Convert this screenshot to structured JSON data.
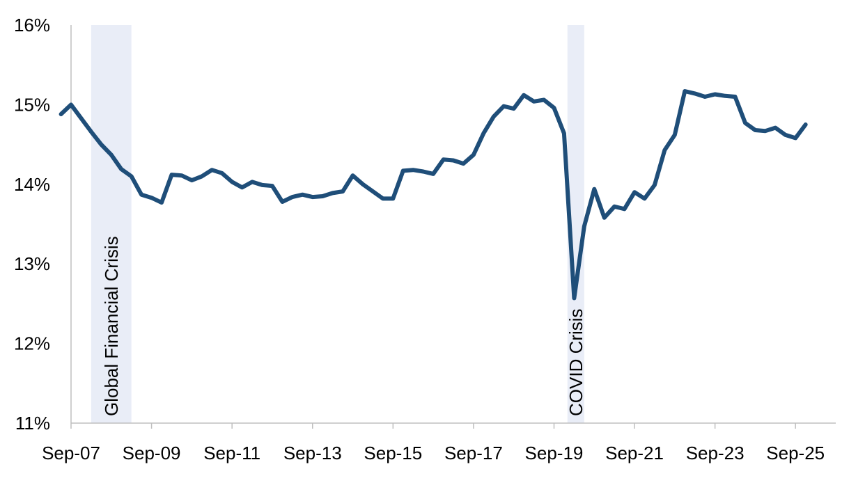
{
  "chart_data": {
    "type": "line",
    "title": "",
    "xlabel": "",
    "ylabel": "",
    "x_tick_labels": [
      "Sep-07",
      "Sep-09",
      "Sep-11",
      "Sep-13",
      "Sep-15",
      "Sep-17",
      "Sep-19",
      "Sep-21",
      "Sep-23",
      "Sep-25"
    ],
    "y_tick_labels": [
      "11%",
      "12%",
      "13%",
      "14%",
      "15%",
      "16%"
    ],
    "ylim": [
      11,
      16
    ],
    "xlim": [
      "2007-09",
      "2026-09"
    ],
    "grid": false,
    "line_color": "#1F4E79",
    "shaded_periods": [
      {
        "label": "Global Financial Crisis",
        "start": "2008-03",
        "end": "2009-03",
        "color": "#E9EDF7"
      },
      {
        "label": "COVID Crisis",
        "start": "2020-01",
        "end": "2020-06",
        "color": "#E9EDF7"
      }
    ],
    "series": [
      {
        "x": [
          "2007-06",
          "2007-09",
          "2007-12",
          "2008-03",
          "2008-06",
          "2008-09",
          "2008-12",
          "2009-03",
          "2009-06",
          "2009-09",
          "2009-12",
          "2010-03",
          "2010-06",
          "2010-09",
          "2010-12",
          "2011-03",
          "2011-06",
          "2011-09",
          "2011-12",
          "2012-03",
          "2012-06",
          "2012-09",
          "2012-12",
          "2013-03",
          "2013-06",
          "2013-09",
          "2013-12",
          "2014-03",
          "2014-06",
          "2014-09",
          "2014-12",
          "2015-03",
          "2015-06",
          "2015-09",
          "2015-12",
          "2016-03",
          "2016-06",
          "2016-09",
          "2016-12",
          "2017-03",
          "2017-06",
          "2017-09",
          "2017-12",
          "2018-03",
          "2018-06",
          "2018-09",
          "2018-12",
          "2019-03",
          "2019-06",
          "2019-09",
          "2019-12",
          "2020-03",
          "2020-06",
          "2020-09",
          "2020-12",
          "2021-03",
          "2021-06",
          "2021-09",
          "2021-12",
          "2022-03",
          "2022-06",
          "2022-09",
          "2022-12",
          "2023-03",
          "2023-06",
          "2023-09",
          "2023-12",
          "2024-03",
          "2024-06",
          "2024-09",
          "2024-12",
          "2025-03",
          "2025-06",
          "2025-09",
          "2025-12"
        ],
        "values": [
          14.88,
          15.0,
          14.83,
          14.66,
          14.5,
          14.37,
          14.19,
          14.1,
          13.87,
          13.83,
          13.77,
          14.12,
          14.11,
          14.05,
          14.1,
          14.18,
          14.14,
          14.03,
          13.96,
          14.03,
          13.99,
          13.98,
          13.78,
          13.84,
          13.87,
          13.84,
          13.85,
          13.89,
          13.91,
          14.11,
          14.0,
          13.91,
          13.82,
          13.82,
          14.17,
          14.18,
          14.16,
          14.13,
          14.31,
          14.3,
          14.26,
          14.37,
          14.64,
          14.85,
          14.98,
          14.95,
          15.12,
          15.04,
          15.06,
          14.96,
          14.64,
          12.57,
          13.47,
          13.94,
          13.58,
          13.72,
          13.69,
          13.9,
          13.82,
          13.99,
          14.43,
          14.62,
          15.17,
          15.14,
          15.1,
          15.13,
          15.11,
          15.1,
          14.77,
          14.68,
          14.67,
          14.71,
          14.62,
          14.58,
          14.75
        ]
      }
    ]
  }
}
